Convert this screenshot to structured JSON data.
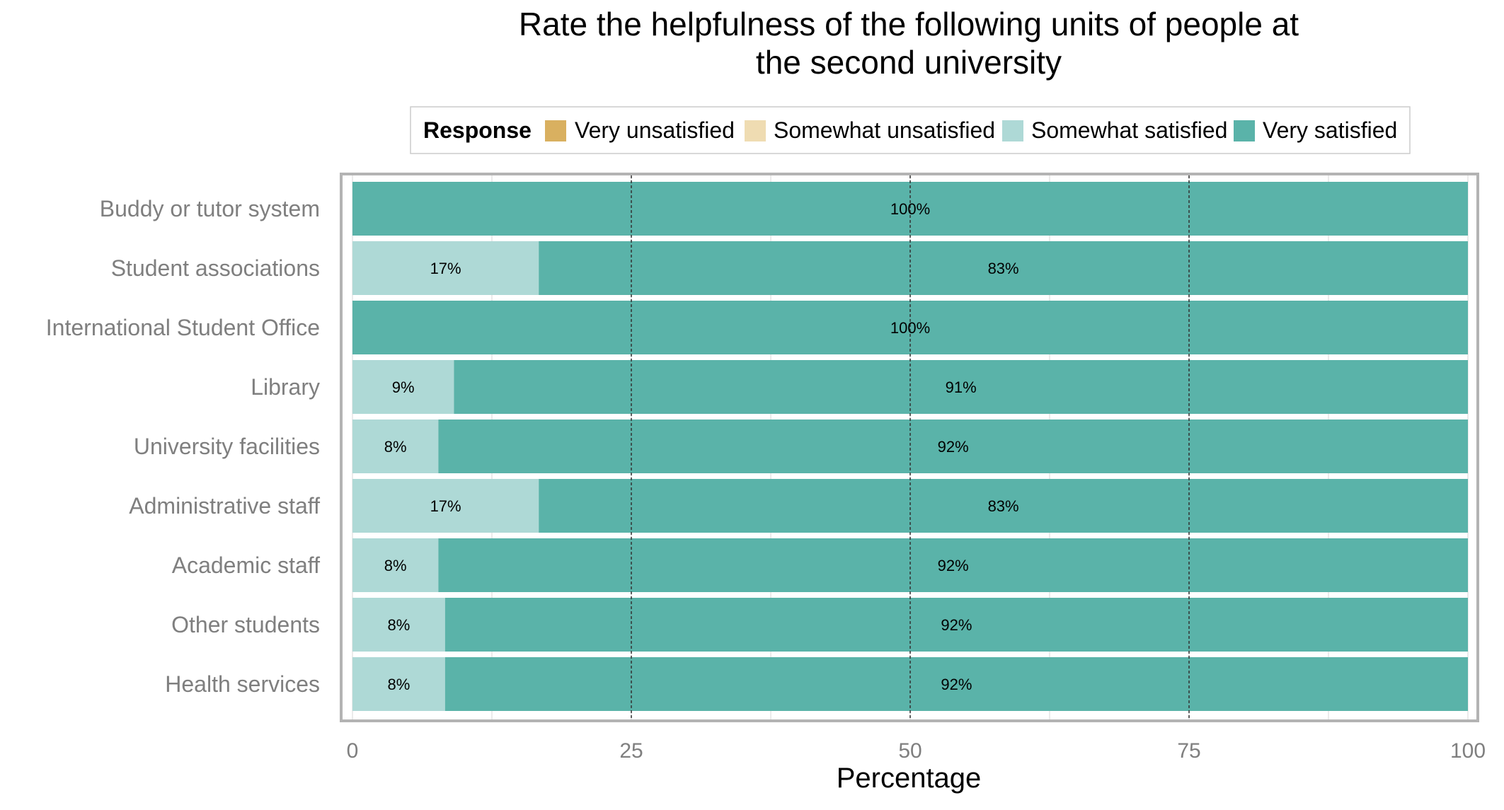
{
  "chart_data": {
    "type": "bar",
    "orientation": "horizontal",
    "stacked": true,
    "title": [
      "Rate the helpfulness of the following units of people at",
      "the second university"
    ],
    "xlabel": "Percentage",
    "ylabel": "",
    "xlim": [
      0,
      100
    ],
    "x_ticks": [
      "0",
      "25",
      "50",
      "75",
      "100"
    ],
    "legend": {
      "title": "Response",
      "position": "top",
      "entries": [
        "Very unsatisfied",
        "Somewhat unsatisfied",
        "Somewhat satisfied",
        "Very satisfied"
      ]
    },
    "colors": {
      "Very unsatisfied": "#d9b060",
      "Somewhat unsatisfied": "#efdcb2",
      "Somewhat satisfied": "#aed9d6",
      "Very satisfied": "#5ab3a9"
    },
    "categories": [
      "Buddy or tutor system",
      "Student associations",
      "International Student Office",
      "Library",
      "University facilities",
      "Administrative staff",
      "Academic staff",
      "Other students",
      "Health services"
    ],
    "series": [
      {
        "name": "Very unsatisfied",
        "values": [
          0,
          0,
          0,
          0,
          0,
          0,
          0,
          0,
          0
        ]
      },
      {
        "name": "Somewhat unsatisfied",
        "values": [
          0,
          0,
          0,
          0,
          0,
          0,
          0,
          0,
          0
        ]
      },
      {
        "name": "Somewhat satisfied",
        "values": [
          0,
          16.7,
          0,
          9.1,
          7.7,
          16.7,
          7.7,
          8.3,
          8.3
        ]
      },
      {
        "name": "Very satisfied",
        "values": [
          100,
          83.3,
          100,
          90.9,
          92.3,
          83.3,
          92.3,
          91.7,
          91.7
        ]
      }
    ],
    "data_labels": [
      [
        "",
        "",
        "",
        "100%"
      ],
      [
        "",
        "",
        "17%",
        "83%"
      ],
      [
        "",
        "",
        "",
        "100%"
      ],
      [
        "",
        "",
        "9%",
        "91%"
      ],
      [
        "",
        "",
        "8%",
        "92%"
      ],
      [
        "",
        "",
        "17%",
        "83%"
      ],
      [
        "",
        "",
        "8%",
        "92%"
      ],
      [
        "",
        "",
        "8%",
        "92%"
      ],
      [
        "",
        "",
        "8%",
        "92%"
      ]
    ],
    "reference_lines": [
      25,
      50,
      75
    ],
    "grid": true
  }
}
